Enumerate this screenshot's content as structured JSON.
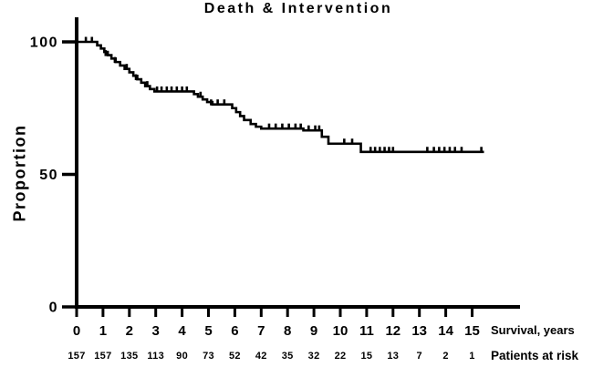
{
  "chart_data": {
    "type": "line",
    "subtype": "kaplan_meier_step_curve",
    "title": "Death & Intervention",
    "xlabel": "Survival, years",
    "ylabel": "Proportion",
    "x_ticks": [
      0,
      1,
      2,
      3,
      4,
      5,
      6,
      7,
      8,
      9,
      10,
      11,
      12,
      13,
      14,
      15
    ],
    "y_ticks": [
      0,
      50,
      100
    ],
    "xlim": [
      0,
      15.5
    ],
    "ylim": [
      0,
      110
    ],
    "grid": false,
    "legend": "none",
    "line_color": "#000000",
    "background_color": "#ffffff",
    "curve_end_x": 15.45,
    "steps": [
      [
        0,
        100
      ],
      [
        0.78,
        98.7
      ],
      [
        0.92,
        97.5
      ],
      [
        1.05,
        96.2
      ],
      [
        1.18,
        95.0
      ],
      [
        1.32,
        93.7
      ],
      [
        1.48,
        92.4
      ],
      [
        1.65,
        91.1
      ],
      [
        1.82,
        89.8
      ],
      [
        2.0,
        88.5
      ],
      [
        2.15,
        87.2
      ],
      [
        2.3,
        85.9
      ],
      [
        2.45,
        84.6
      ],
      [
        2.6,
        83.3
      ],
      [
        2.78,
        82.2
      ],
      [
        2.95,
        81.3
      ],
      [
        4.45,
        80.3
      ],
      [
        4.6,
        79.3
      ],
      [
        4.78,
        78.3
      ],
      [
        4.95,
        77.3
      ],
      [
        5.15,
        76.4
      ],
      [
        5.9,
        75.0
      ],
      [
        6.05,
        73.5
      ],
      [
        6.2,
        72.0
      ],
      [
        6.35,
        70.5
      ],
      [
        6.6,
        69.0
      ],
      [
        6.8,
        68.0
      ],
      [
        7.0,
        67.3
      ],
      [
        8.6,
        66.6
      ],
      [
        9.3,
        64.2
      ],
      [
        9.55,
        61.6
      ],
      [
        10.78,
        58.5
      ]
    ],
    "censor_marks": [
      [
        0.35,
        100
      ],
      [
        0.58,
        100
      ],
      [
        1.1,
        95.0
      ],
      [
        1.45,
        92.4
      ],
      [
        1.9,
        89.8
      ],
      [
        2.25,
        85.9
      ],
      [
        2.68,
        83.3
      ],
      [
        3.05,
        81.3
      ],
      [
        3.22,
        81.3
      ],
      [
        3.42,
        81.3
      ],
      [
        3.6,
        81.3
      ],
      [
        3.8,
        81.3
      ],
      [
        4.0,
        81.3
      ],
      [
        4.18,
        81.3
      ],
      [
        4.7,
        79.3
      ],
      [
        5.1,
        76.4
      ],
      [
        5.35,
        76.4
      ],
      [
        5.6,
        76.4
      ],
      [
        7.3,
        67.3
      ],
      [
        7.55,
        67.3
      ],
      [
        7.8,
        67.3
      ],
      [
        8.05,
        67.3
      ],
      [
        8.3,
        67.3
      ],
      [
        8.5,
        67.3
      ],
      [
        8.8,
        66.6
      ],
      [
        9.05,
        66.6
      ],
      [
        9.2,
        66.6
      ],
      [
        10.15,
        61.6
      ],
      [
        10.45,
        61.6
      ],
      [
        11.15,
        58.5
      ],
      [
        11.32,
        58.5
      ],
      [
        11.5,
        58.5
      ],
      [
        11.68,
        58.5
      ],
      [
        11.85,
        58.5
      ],
      [
        12.0,
        58.5
      ],
      [
        13.3,
        58.5
      ],
      [
        13.55,
        58.5
      ],
      [
        13.75,
        58.5
      ],
      [
        13.95,
        58.5
      ],
      [
        14.15,
        58.5
      ],
      [
        14.35,
        58.5
      ],
      [
        14.6,
        58.5
      ],
      [
        15.35,
        58.5
      ]
    ],
    "at_risk": {
      "label": "Patients at risk",
      "values": [
        157,
        157,
        135,
        113,
        90,
        73,
        52,
        42,
        35,
        32,
        22,
        15,
        13,
        7,
        2,
        1
      ]
    }
  }
}
